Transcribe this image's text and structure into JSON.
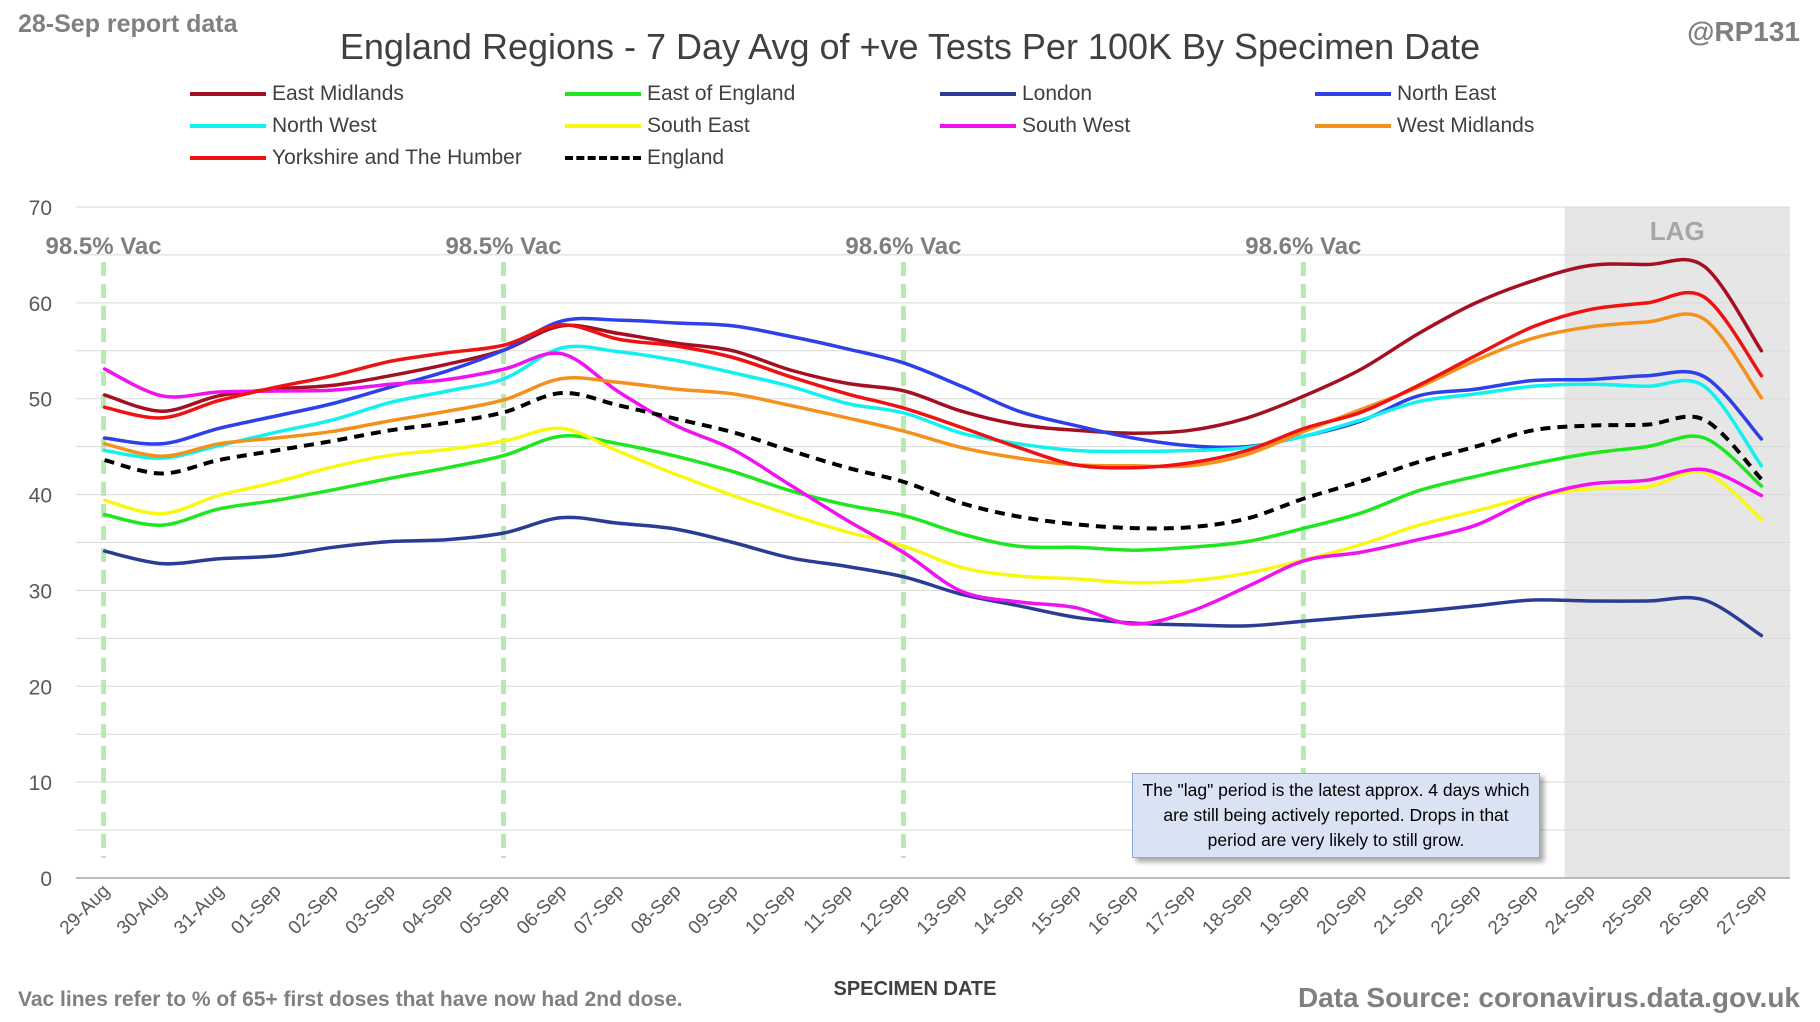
{
  "report_note": "28-Sep report data",
  "handle": "@RP131",
  "footnote": "Vac lines refer to % of 65+ first doses that have now had 2nd dose.",
  "source": "Data Source: coronavirus.data.gov.uk",
  "lag_note": "The \"lag\" period is the latest approx. 4 days which are still being actively reported.  Drops in that period are very likely to still grow.",
  "chart_data": {
    "type": "line",
    "title": "England Regions - 7 Day Avg of +ve Tests Per 100K By Specimen Date",
    "xlabel": "SPECIMEN DATE",
    "ylabel": "",
    "ylim": [
      0,
      70
    ],
    "y_ticks": [
      0,
      10,
      20,
      30,
      40,
      50,
      60,
      70
    ],
    "grid": true,
    "legend_position": "top",
    "categories": [
      "29-Aug",
      "30-Aug",
      "31-Aug",
      "01-Sep",
      "02-Sep",
      "03-Sep",
      "04-Sep",
      "05-Sep",
      "06-Sep",
      "07-Sep",
      "08-Sep",
      "09-Sep",
      "10-Sep",
      "11-Sep",
      "12-Sep",
      "13-Sep",
      "14-Sep",
      "15-Sep",
      "16-Sep",
      "17-Sep",
      "18-Sep",
      "19-Sep",
      "20-Sep",
      "21-Sep",
      "22-Sep",
      "23-Sep",
      "24-Sep",
      "25-Sep",
      "26-Sep",
      "27-Sep"
    ],
    "lag_region": {
      "label": "LAG",
      "from": "24-Sep",
      "to": "27-Sep"
    },
    "vac_markers": [
      {
        "date": "29-Aug",
        "label": "98.5% Vac"
      },
      {
        "date": "05-Sep",
        "label": "98.5% Vac"
      },
      {
        "date": "12-Sep",
        "label": "98.6% Vac"
      },
      {
        "date": "19-Sep",
        "label": "98.6% Vac"
      }
    ],
    "series": [
      {
        "name": "East Midlands",
        "color": "#a50f22",
        "dash": false,
        "values": [
          50.4,
          48.7,
          50.3,
          51,
          51.4,
          52.4,
          53.6,
          55.1,
          57.6,
          56.8,
          55.8,
          55,
          53,
          51.6,
          50.8,
          48.7,
          47.3,
          46.7,
          46.4,
          46.7,
          48,
          50.3,
          53.1,
          56.8,
          60,
          62.3,
          63.9,
          64,
          63.8,
          55
        ]
      },
      {
        "name": "East of England",
        "color": "#1fe61f",
        "dash": false,
        "values": [
          37.9,
          36.8,
          38.5,
          39.4,
          40.5,
          41.7,
          42.8,
          44.1,
          46.1,
          45.3,
          44,
          42.4,
          40.4,
          38.9,
          37.8,
          35.9,
          34.6,
          34.5,
          34.2,
          34.5,
          35.1,
          36.5,
          38.1,
          40.4,
          41.9,
          43.2,
          44.3,
          45,
          45.9,
          40.9
        ]
      },
      {
        "name": "London",
        "color": "#2b3c94",
        "dash": false,
        "values": [
          34.1,
          32.8,
          33.3,
          33.6,
          34.5,
          35.1,
          35.3,
          36,
          37.6,
          37,
          36.4,
          35,
          33.4,
          32.5,
          31.4,
          29.6,
          28.4,
          27.2,
          26.6,
          26.4,
          26.3,
          26.8,
          27.3,
          27.8,
          28.4,
          29,
          28.9,
          28.9,
          29,
          25.3
        ]
      },
      {
        "name": "North East",
        "color": "#2e40e8",
        "dash": false,
        "values": [
          45.9,
          45.3,
          46.9,
          48.2,
          49.5,
          51.2,
          52.9,
          55.1,
          58.1,
          58.2,
          57.9,
          57.6,
          56.5,
          55.2,
          53.7,
          51.3,
          48.7,
          47.2,
          45.9,
          45.1,
          45,
          46.1,
          47.7,
          50.3,
          51,
          51.9,
          52,
          52.4,
          52.3,
          45.8
        ]
      },
      {
        "name": "North West",
        "color": "#12f0f0",
        "dash": false,
        "values": [
          44.6,
          43.8,
          45.1,
          46.5,
          47.8,
          49.6,
          50.8,
          52.1,
          55.3,
          54.9,
          54,
          52.7,
          51.3,
          49.5,
          48.5,
          46.4,
          45.3,
          44.6,
          44.5,
          44.6,
          44.9,
          46.1,
          47.8,
          49.7,
          50.5,
          51.3,
          51.5,
          51.3,
          51.3,
          43
        ]
      },
      {
        "name": "South East",
        "color": "#f8f812",
        "dash": false,
        "values": [
          39.4,
          38,
          39.9,
          41.3,
          42.9,
          44.1,
          44.7,
          45.6,
          46.9,
          44.5,
          42.1,
          39.9,
          37.9,
          36.1,
          34.6,
          32.4,
          31.5,
          31.2,
          30.8,
          31,
          31.8,
          33.2,
          34.8,
          36.8,
          38.3,
          39.8,
          40.6,
          40.8,
          42.3,
          37.4
        ]
      },
      {
        "name": "South West",
        "color": "#f013f0",
        "dash": false,
        "values": [
          53.1,
          50.3,
          50.7,
          50.8,
          50.9,
          51.5,
          52,
          53.1,
          54.7,
          50.7,
          47.2,
          44.7,
          41,
          37.3,
          33.9,
          29.9,
          28.8,
          28.2,
          26.5,
          27.8,
          30.4,
          33.1,
          34,
          35.3,
          36.8,
          39.6,
          41.1,
          41.5,
          42.6,
          39.9
        ]
      },
      {
        "name": "West Midlands",
        "color": "#f5901d",
        "dash": false,
        "values": [
          45.3,
          44,
          45.3,
          45.9,
          46.6,
          47.7,
          48.7,
          49.9,
          52.1,
          51.7,
          51,
          50.5,
          49.3,
          48,
          46.6,
          44.9,
          43.8,
          43.1,
          43,
          43,
          44.2,
          46.6,
          48.9,
          51.2,
          54,
          56.3,
          57.5,
          58,
          58.3,
          50.1
        ]
      },
      {
        "name": "Yorkshire and The Humber",
        "color": "#ee1313",
        "dash": false,
        "values": [
          49.1,
          48,
          49.8,
          51.2,
          52.4,
          53.9,
          54.8,
          55.6,
          57.7,
          56.2,
          55.5,
          54.3,
          52.3,
          50.5,
          49,
          47,
          44.9,
          43.1,
          42.8,
          43.3,
          44.6,
          46.9,
          48.6,
          51.4,
          54.5,
          57.5,
          59.3,
          60,
          60.6,
          52.4
        ]
      },
      {
        "name": "England",
        "color": "#000000",
        "dash": true,
        "values": [
          43.6,
          42.2,
          43.6,
          44.6,
          45.6,
          46.7,
          47.5,
          48.6,
          50.6,
          49.3,
          47.9,
          46.5,
          44.6,
          42.8,
          41.3,
          39.1,
          37.7,
          36.9,
          36.5,
          36.6,
          37.5,
          39.6,
          41.4,
          43.4,
          45,
          46.7,
          47.2,
          47.3,
          47.8,
          41.6
        ]
      }
    ]
  }
}
